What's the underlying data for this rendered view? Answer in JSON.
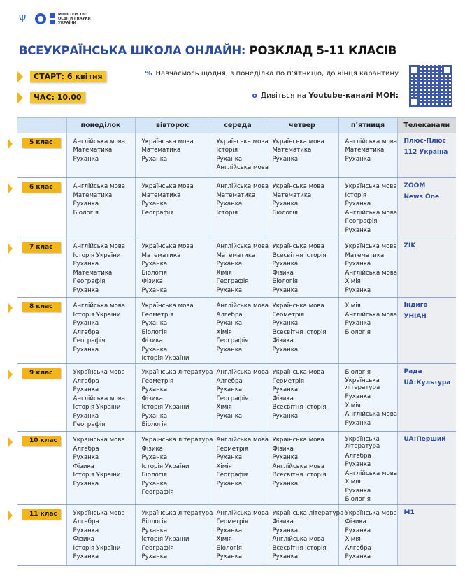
{
  "logo": {
    "text": "МІНІСТЕРСТВО ОСВІТИ І НАУКИ УКРАЇНИ"
  },
  "title": {
    "part1": "ВСЕУКРАЇНСЬКА ШКОЛА ОНЛАЙН:",
    "part2": " РОЗКЛАД 5-11 КЛАСІВ"
  },
  "start": "СТАРТ: 6 квітня",
  "time": "ЧАС: 10.00",
  "info": {
    "daily_icon": "%",
    "daily": "Навчаємось щодня, з понеділка по п’ятницю, до кінця карантину",
    "youtube_icon": "o",
    "youtube_pre": "Дивіться на ",
    "youtube_bold": "Youtube-каналі МОН:"
  },
  "colors": {
    "accent_blue": "#2b4aa2",
    "badge_yellow": "#f2b51b",
    "header_bg": "#d5e7f7"
  },
  "table": {
    "headers": [
      "",
      "понеділок",
      "вівторок",
      "середа",
      "четвер",
      "п’ятниця",
      "Телеканали"
    ],
    "rows": [
      {
        "class": "5 клас",
        "days": [
          [
            "Англійська мова",
            "Математика",
            "Руханка"
          ],
          [
            "Українська мова",
            "Математика",
            "Руханка"
          ],
          [
            "Українська мова",
            "Історія",
            "Руханка",
            "Англійська мова"
          ],
          [
            "Українська мова",
            "Математика",
            "Руханка"
          ],
          [
            "Англійська мова",
            "Математика",
            "Руханка"
          ]
        ],
        "channels": [
          "Плюс-Плюс",
          "112 Україна"
        ]
      },
      {
        "class": "6 клас",
        "days": [
          [
            "Англійська мова",
            "Математика",
            "Руханка",
            "Біологія"
          ],
          [
            "Українська мова",
            "Математика",
            "Руханка",
            "Географія"
          ],
          [
            "Англійська мова",
            "Математика",
            "Руханка",
            "Історія"
          ],
          [
            "Українська мова",
            "Математика",
            "Руханка",
            "Біологія"
          ],
          [
            "Українська мова",
            "Історія",
            "Руханка",
            "Англійська мова",
            "Географія",
            "Руханка"
          ]
        ],
        "channels": [
          "ZOOM",
          "News One"
        ]
      },
      {
        "class": "7 клас",
        "days": [
          [
            "Англійська мова",
            "Історія України",
            "Руханка",
            "Математика",
            "Географія",
            "Руханка"
          ],
          [
            "Українська мова",
            "Математика",
            "Руханка",
            "Біологія",
            "Фізика",
            "Руханка"
          ],
          [
            "Англійська мова",
            "Математика",
            "Руханка",
            "Хімія",
            "Географія",
            "Руханка"
          ],
          [
            "Українська мова",
            "Всесвітня історія",
            "Руханка",
            "Фізика",
            "Біологія",
            "Руханка"
          ],
          [
            "Українська мова",
            "Математика",
            "Руханка",
            "Англійська мова",
            "Хімія",
            "Руханка"
          ]
        ],
        "channels": [
          "ZIK"
        ]
      },
      {
        "class": "8 клас",
        "days": [
          [
            "Англійська мова",
            "Історія України",
            "Руханка",
            "Алгебра",
            "Географія",
            "Руханка"
          ],
          [
            "Українська мова",
            "Геометрія",
            "Руханка",
            "Біологія",
            "Фізика",
            "Руханка",
            "Історія України"
          ],
          [
            "Англійська мова",
            "Алгебра",
            "Руханка",
            "Хімія",
            "Географія",
            "Руханка"
          ],
          [
            "Українська мова",
            "Геометрія",
            "Руханка",
            "Всесвітня історія",
            "Фізика",
            "Руханка"
          ],
          [
            "Хімія",
            "Англійська мова",
            "Руханка",
            "Біологія"
          ]
        ],
        "channels": [
          "Індиго",
          "УНІАН"
        ]
      },
      {
        "class": "9 клас",
        "days": [
          [
            "Українська мова",
            "Алгебра",
            "Руханка",
            "Англійська мова",
            "Історія України",
            "Руханка",
            "Географія"
          ],
          [
            "Українська література",
            "Геометрія",
            "Руханка",
            "Фізика",
            "Історія України",
            "Руханка",
            "Біологія"
          ],
          [
            "Англійська мова",
            "Алгебра",
            "Руханка",
            "Географія",
            "Хімія",
            "Руханка"
          ],
          [
            "Українська мова",
            "Геометрія",
            "Руханка",
            "Фізика",
            "Всесвітня історія",
            "Руханка"
          ],
          [
            "Біологія",
            "Українська література",
            "Руханка",
            "Хімія",
            "Англійська мова",
            "Руханка"
          ]
        ],
        "channels": [
          "Рада",
          "UA:Культура"
        ]
      },
      {
        "class": "10 клас",
        "days": [
          [
            "Українська мова",
            "Алгебра",
            "Руханка",
            "Фізика",
            "Історія України",
            "Руханка"
          ],
          [
            "Українська література",
            "Фізика",
            "Руханка",
            "Історія України",
            "Біологія",
            "Руханка",
            "Географія"
          ],
          [
            "Англійська мова",
            "Геометрія",
            "Руханка",
            "Хімія",
            "Географія",
            "Руханка"
          ],
          [
            "Українська мова",
            "Фізика",
            "Руханка",
            "Англійська мова",
            "Всесвітня історія",
            "Руханка"
          ],
          [
            "Українська література",
            "Алгебра",
            "Руханка",
            "Англійська мова",
            "Хімія",
            "Руханка",
            "Біологія"
          ]
        ],
        "channels": [
          "UA:Перший"
        ]
      },
      {
        "class": "11 клас",
        "days": [
          [
            "Українська мова",
            "Алгебра",
            "Руханка",
            "Фізика",
            "Історія України",
            "Руханка"
          ],
          [
            "Українська література",
            "Біологія",
            "Руханка",
            "Історія України",
            "Географія",
            "Руханка"
          ],
          [
            "Англійська мова",
            "Геометрія",
            "Руханка",
            "Хімія",
            "Біологія",
            "Руханка"
          ],
          [
            "Українська література",
            "Фізика",
            "Руханка",
            "Англійська мова",
            "Всесвітня історія",
            "Руханка"
          ],
          [
            "Українська мова",
            "Фізика",
            "Руханка",
            "Хімія",
            "Алгебра",
            "Руханка"
          ]
        ],
        "channels": [
          "M1"
        ]
      }
    ]
  }
}
